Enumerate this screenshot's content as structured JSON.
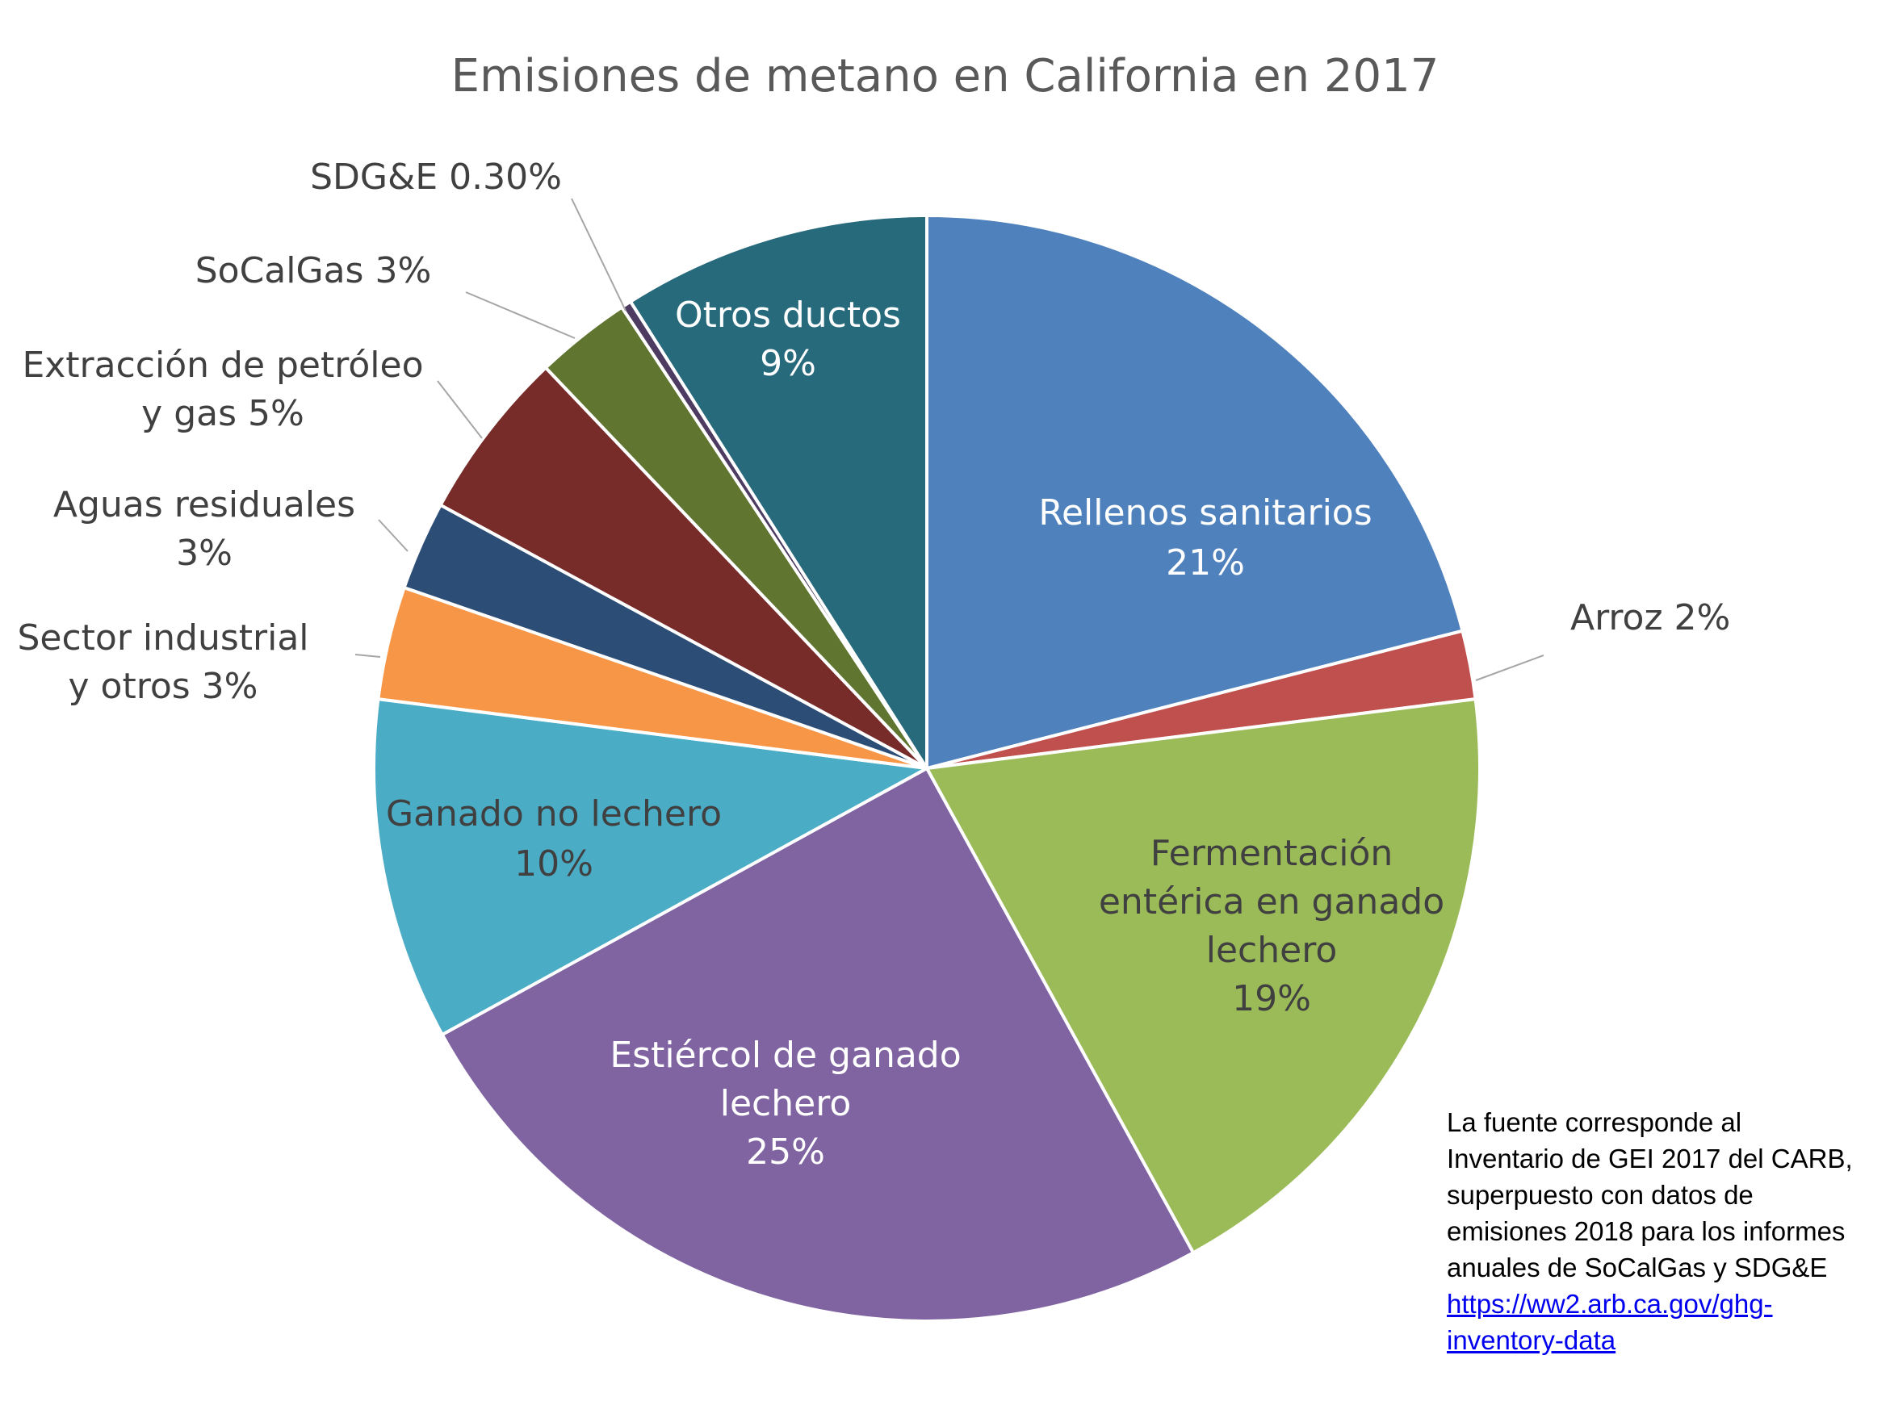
{
  "chart_data": {
    "type": "pie",
    "title": "Emisiones de metano en California en 2017",
    "slices": [
      {
        "label": "Rellenos sanitarios",
        "value_label": "21%",
        "value": 21,
        "color": "#4f81bd",
        "label_color": "#ffffff",
        "label_lines": [
          "Rellenos sanitarios",
          "21%"
        ]
      },
      {
        "label": "Arroz",
        "value_label": "2%",
        "value": 2,
        "color": "#c0504d",
        "label_color": "#404040",
        "label_lines": [
          "Arroz 2%"
        ]
      },
      {
        "label": "Fermentación entérica en ganado lechero",
        "value_label": "19%",
        "value": 19,
        "color": "#9bbb59",
        "label_color": "#404040",
        "label_lines": [
          "Fermentación",
          "entérica en ganado",
          "lechero",
          "19%"
        ]
      },
      {
        "label": "Estiércol de ganado lechero",
        "value_label": "25%",
        "value": 25,
        "color": "#8064a2",
        "label_color": "#ffffff",
        "label_lines": [
          "Estiércol de ganado",
          "lechero",
          "25%"
        ]
      },
      {
        "label": "Ganado no lechero",
        "value_label": "10%",
        "value": 10,
        "color": "#4bacc6",
        "label_color": "#404040",
        "label_lines": [
          "Ganado no lechero",
          "10%"
        ]
      },
      {
        "label": "Sector industrial y otros",
        "value_label": "3%",
        "value": 3.3,
        "color": "#f79646",
        "label_color": "#404040",
        "label_lines": [
          "Sector industrial",
          "y otros 3%"
        ]
      },
      {
        "label": "Aguas residuales",
        "value_label": "3%",
        "value": 2.6,
        "color": "#2c4d75",
        "label_color": "#404040",
        "label_lines": [
          "Aguas residuales",
          "3%"
        ]
      },
      {
        "label": "Extracción de petróleo y gas",
        "value_label": "5%",
        "value": 5,
        "color": "#772c2a",
        "label_color": "#404040",
        "label_lines": [
          "Extracción de petróleo",
          "y gas 5%"
        ]
      },
      {
        "label": "SoCalGas",
        "value_label": "3%",
        "value": 2.8,
        "color": "#5f7530",
        "label_color": "#404040",
        "label_lines": [
          "SoCalGas 3%"
        ]
      },
      {
        "label": "SDG&E",
        "value_label": "0.30%",
        "value": 0.3,
        "color": "#4d3b62",
        "label_color": "#404040",
        "label_lines": [
          "SDG&E 0.30%"
        ]
      },
      {
        "label": "Otros ductos",
        "value_label": "9%",
        "value": 9,
        "color": "#276a7c",
        "label_color": "#ffffff",
        "label_lines": [
          "Otros ductos",
          "9%"
        ]
      }
    ],
    "legend": "none"
  },
  "source_note": {
    "lines": [
      "La fuente corresponde al",
      "Inventario  de GEI 2017 del CARB,",
      "superpuesto con datos de",
      "emisiones 2018 para los informes",
      "anuales de SoCalGas y SDG&E"
    ],
    "link_lines": [
      "https://ww2.arb.ca.gov/ghg-",
      "inventory-data"
    ]
  }
}
